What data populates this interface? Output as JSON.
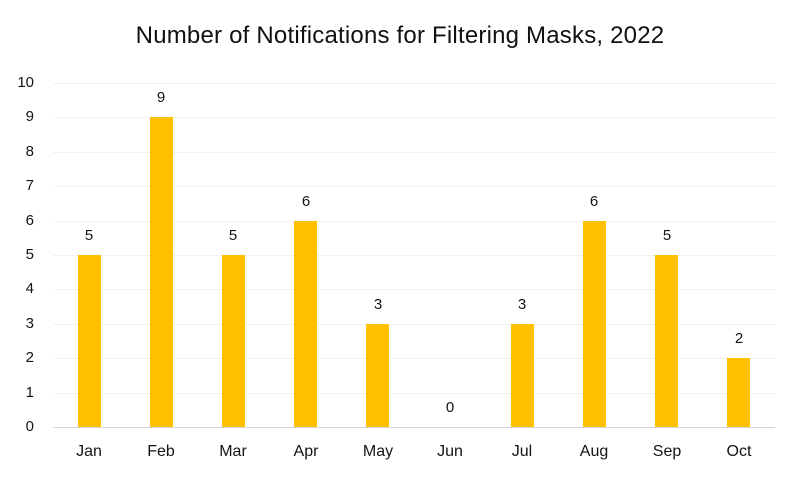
{
  "chart_data": {
    "type": "bar",
    "title": "Number of Notifications for Filtering Masks, 2022",
    "categories": [
      "Jan",
      "Feb",
      "Mar",
      "Apr",
      "May",
      "Jun",
      "Jul",
      "Aug",
      "Sep",
      "Oct"
    ],
    "values": [
      5,
      9,
      5,
      6,
      3,
      0,
      3,
      6,
      5,
      2
    ],
    "xlabel": "",
    "ylabel": "",
    "ylim": [
      0,
      10
    ],
    "y_tick_step": 1,
    "y_tick_labels": [
      "0",
      "1",
      "2",
      "3",
      "4",
      "5",
      "6",
      "7",
      "8",
      "9",
      "10"
    ],
    "grid": true,
    "legend_position": "none",
    "data_labels": true,
    "bar_color": "#FFC000",
    "text_color": "#141414"
  }
}
